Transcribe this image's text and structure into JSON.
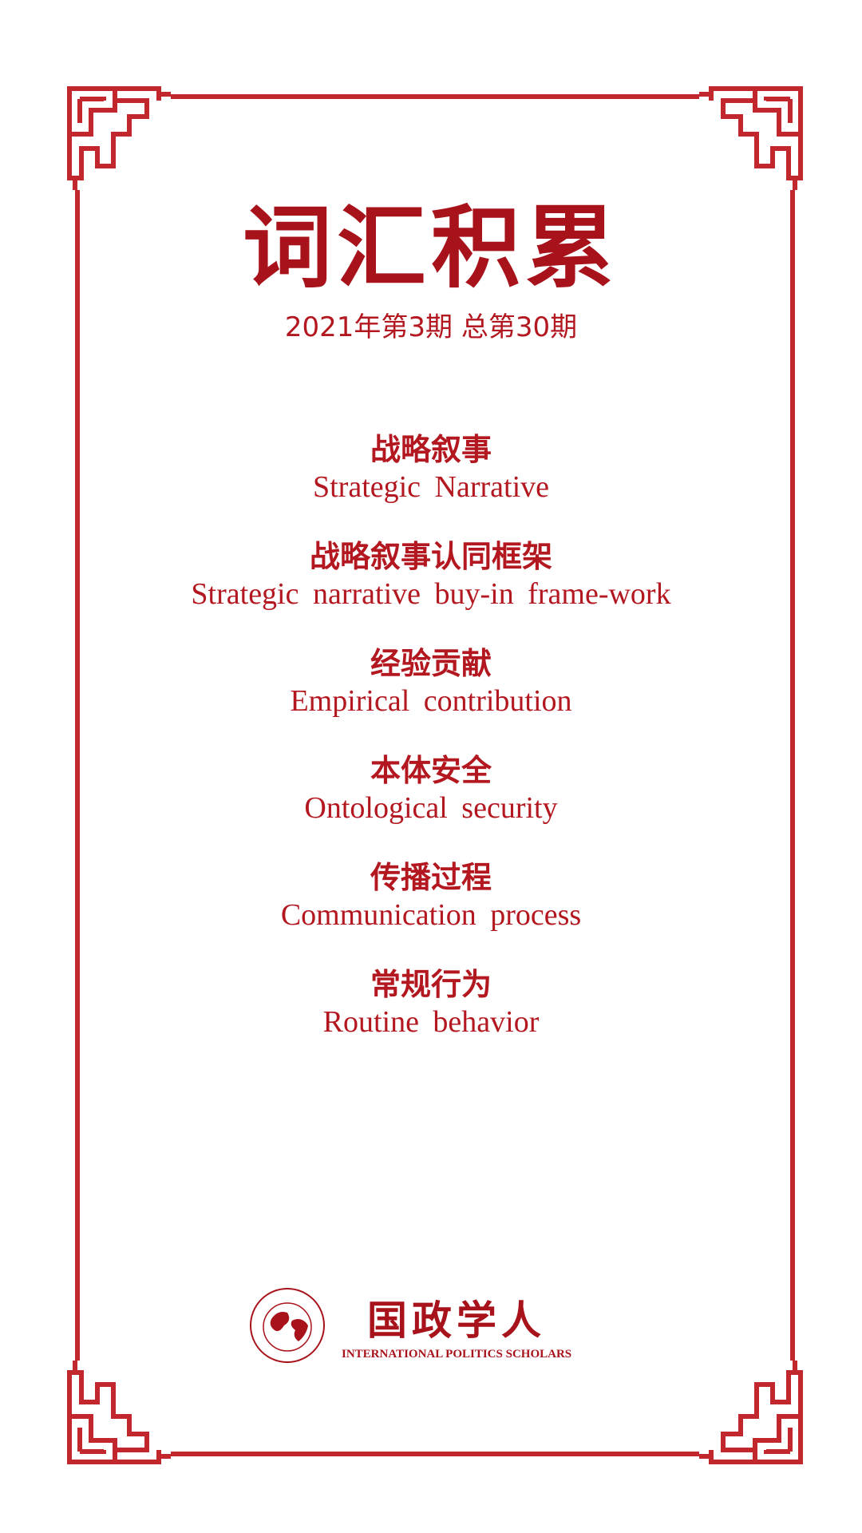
{
  "title": "词汇积累",
  "issue": "2021年第3期 总第30期",
  "terms": [
    {
      "zh": "战略叙事",
      "en": "Strategic Narrative"
    },
    {
      "zh": "战略叙事认同框架",
      "en": "Strategic narrative buy-in frame-work"
    },
    {
      "zh": "经验贡献",
      "en": "Empirical contribution"
    },
    {
      "zh": "本体安全",
      "en": "Ontological security"
    },
    {
      "zh": "传播过程",
      "en": "Communication process"
    },
    {
      "zh": "常规行为",
      "en": "Routine behavior"
    }
  ],
  "logo": {
    "name": "国政学人",
    "subtitle": "INTERNATIONAL POLITICS SCHOLARS"
  }
}
